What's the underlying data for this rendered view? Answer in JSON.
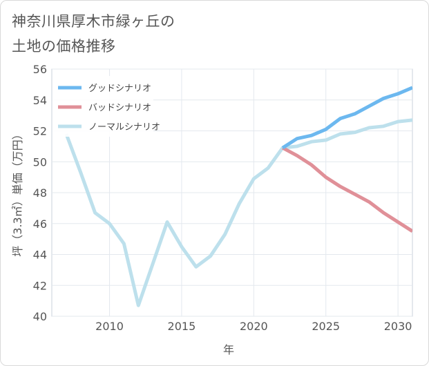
{
  "title_line1": "神奈川県厚木市緑ヶ丘の",
  "title_line2": "土地の価格推移",
  "chart_data": {
    "type": "line",
    "xlabel": "年",
    "ylabel": "坪（3.3㎡）単価（万円）",
    "xlim": [
      2006,
      2031
    ],
    "ylim": [
      40,
      56
    ],
    "xticks": [
      2010,
      2015,
      2020,
      2025,
      2030
    ],
    "yticks": [
      40,
      42,
      44,
      46,
      48,
      50,
      52,
      54,
      56
    ],
    "grid": true,
    "legend_position": "top-left",
    "series": [
      {
        "name": "グッドシナリオ",
        "color": "#6cb8ef",
        "x": [
          2022,
          2023,
          2024,
          2025,
          2026,
          2027,
          2028,
          2029,
          2030,
          2031
        ],
        "y": [
          50.9,
          51.5,
          51.7,
          52.1,
          52.8,
          53.1,
          53.6,
          54.1,
          54.4,
          54.8
        ]
      },
      {
        "name": "バッドシナリオ",
        "color": "#e09098",
        "x": [
          2022,
          2023,
          2024,
          2025,
          2026,
          2027,
          2028,
          2029,
          2030,
          2031
        ],
        "y": [
          50.9,
          50.4,
          49.8,
          49.0,
          48.4,
          47.9,
          47.4,
          46.7,
          46.1,
          45.5
        ]
      },
      {
        "name": "ノーマルシナリオ",
        "color": "#bde0ec",
        "x": [
          2007,
          2008,
          2009,
          2010,
          2011,
          2012,
          2013,
          2014,
          2015,
          2016,
          2017,
          2018,
          2019,
          2020,
          2021,
          2022,
          2023,
          2024,
          2025,
          2026,
          2027,
          2028,
          2029,
          2030,
          2031
        ],
        "y": [
          51.8,
          49.3,
          46.7,
          46.0,
          44.7,
          40.7,
          43.4,
          46.1,
          44.5,
          43.2,
          43.9,
          45.3,
          47.3,
          48.9,
          49.6,
          50.9,
          51.0,
          51.3,
          51.4,
          51.8,
          51.9,
          52.2,
          52.3,
          52.6,
          52.7
        ]
      }
    ]
  }
}
